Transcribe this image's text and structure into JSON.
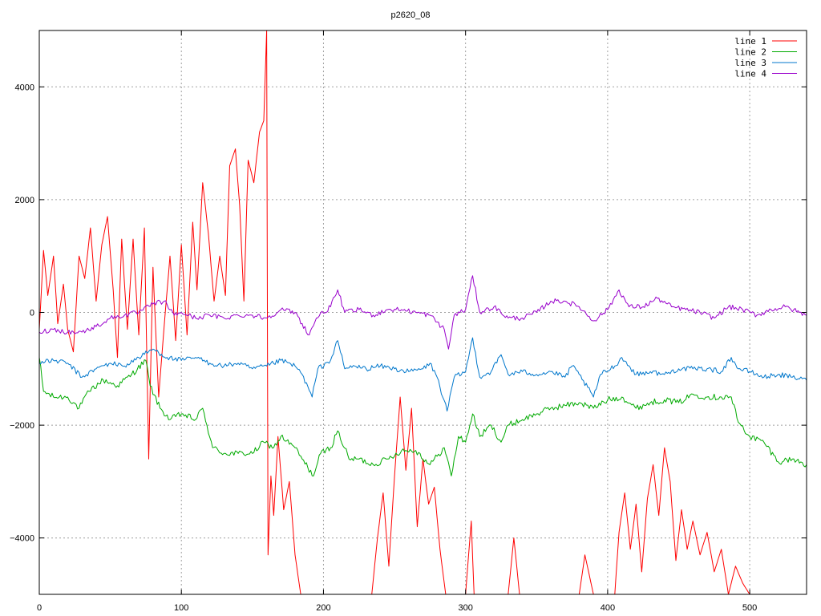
{
  "chart_data": {
    "type": "line",
    "title": "p2620_08",
    "xlabel": "",
    "ylabel": "",
    "xlim": [
      0,
      540
    ],
    "ylim": [
      -5000,
      5000
    ],
    "x_ticks": [
      0,
      100,
      200,
      300,
      400,
      500
    ],
    "y_ticks": [
      -4000,
      -2000,
      0,
      2000,
      4000
    ],
    "grid": true,
    "legend_position": "top-right",
    "series": [
      {
        "name": "line 1",
        "color": "#ff0000",
        "points": [
          [
            0,
            -300
          ],
          [
            3,
            1100
          ],
          [
            6,
            300
          ],
          [
            10,
            1000
          ],
          [
            13,
            -200
          ],
          [
            17,
            500
          ],
          [
            20,
            -300
          ],
          [
            24,
            -700
          ],
          [
            28,
            1000
          ],
          [
            32,
            600
          ],
          [
            36,
            1500
          ],
          [
            40,
            200
          ],
          [
            44,
            1200
          ],
          [
            48,
            1700
          ],
          [
            52,
            400
          ],
          [
            55,
            -800
          ],
          [
            58,
            1300
          ],
          [
            62,
            -300
          ],
          [
            66,
            1300
          ],
          [
            70,
            -400
          ],
          [
            74,
            1500
          ],
          [
            77,
            -2600
          ],
          [
            80,
            800
          ],
          [
            84,
            -1500
          ],
          [
            88,
            -200
          ],
          [
            92,
            1000
          ],
          [
            96,
            -500
          ],
          [
            100,
            1200
          ],
          [
            104,
            -400
          ],
          [
            108,
            1600
          ],
          [
            111,
            400
          ],
          [
            115,
            2300
          ],
          [
            119,
            1400
          ],
          [
            123,
            200
          ],
          [
            127,
            1000
          ],
          [
            131,
            300
          ],
          [
            134,
            2600
          ],
          [
            138,
            2900
          ],
          [
            141,
            1900
          ],
          [
            144,
            200
          ],
          [
            147,
            2700
          ],
          [
            151,
            2300
          ],
          [
            155,
            3200
          ],
          [
            158,
            3400
          ],
          [
            160,
            5000
          ],
          [
            161,
            -4300
          ],
          [
            163,
            -2900
          ],
          [
            165,
            -3600
          ],
          [
            168,
            -2200
          ],
          [
            172,
            -3500
          ],
          [
            176,
            -3000
          ],
          [
            180,
            -4300
          ],
          [
            184,
            -5000
          ],
          [
            234,
            -5000
          ],
          [
            238,
            -4000
          ],
          [
            242,
            -3200
          ],
          [
            246,
            -4500
          ],
          [
            250,
            -2900
          ],
          [
            254,
            -1500
          ],
          [
            258,
            -2800
          ],
          [
            262,
            -1700
          ],
          [
            266,
            -3800
          ],
          [
            270,
            -2600
          ],
          [
            274,
            -3400
          ],
          [
            278,
            -3100
          ],
          [
            282,
            -4200
          ],
          [
            286,
            -5000
          ],
          [
            300,
            -5000
          ],
          [
            304,
            -3700
          ],
          [
            306,
            -5000
          ],
          [
            330,
            -5000
          ],
          [
            334,
            -4000
          ],
          [
            338,
            -5000
          ],
          [
            380,
            -5000
          ],
          [
            384,
            -4300
          ],
          [
            390,
            -5000
          ],
          [
            405,
            -5000
          ],
          [
            408,
            -3900
          ],
          [
            412,
            -3200
          ],
          [
            416,
            -4200
          ],
          [
            420,
            -3400
          ],
          [
            424,
            -4600
          ],
          [
            428,
            -3300
          ],
          [
            432,
            -2700
          ],
          [
            436,
            -3600
          ],
          [
            440,
            -2400
          ],
          [
            444,
            -3000
          ],
          [
            448,
            -4400
          ],
          [
            452,
            -3500
          ],
          [
            456,
            -4200
          ],
          [
            460,
            -3700
          ],
          [
            465,
            -4300
          ],
          [
            470,
            -3900
          ],
          [
            475,
            -4600
          ],
          [
            480,
            -4200
          ],
          [
            485,
            -5000
          ],
          [
            490,
            -4500
          ],
          [
            495,
            -4800
          ],
          [
            500,
            -5000
          ],
          [
            540,
            -5000
          ]
        ],
        "jitter": 0
      },
      {
        "name": "line 2",
        "color": "#00aa00",
        "points": [
          [
            0,
            -800
          ],
          [
            3,
            -1400
          ],
          [
            10,
            -1500
          ],
          [
            20,
            -1500
          ],
          [
            28,
            -1700
          ],
          [
            35,
            -1400
          ],
          [
            45,
            -1200
          ],
          [
            55,
            -1300
          ],
          [
            65,
            -1100
          ],
          [
            75,
            -850
          ],
          [
            78,
            -1300
          ],
          [
            85,
            -1700
          ],
          [
            92,
            -1900
          ],
          [
            100,
            -1800
          ],
          [
            110,
            -1900
          ],
          [
            115,
            -1700
          ],
          [
            118,
            -2000
          ],
          [
            122,
            -2400
          ],
          [
            130,
            -2500
          ],
          [
            140,
            -2500
          ],
          [
            150,
            -2500
          ],
          [
            158,
            -2300
          ],
          [
            165,
            -2400
          ],
          [
            170,
            -2200
          ],
          [
            180,
            -2400
          ],
          [
            185,
            -2600
          ],
          [
            193,
            -2900
          ],
          [
            198,
            -2500
          ],
          [
            205,
            -2400
          ],
          [
            210,
            -2100
          ],
          [
            218,
            -2600
          ],
          [
            225,
            -2600
          ],
          [
            235,
            -2700
          ],
          [
            245,
            -2600
          ],
          [
            255,
            -2450
          ],
          [
            265,
            -2450
          ],
          [
            275,
            -2700
          ],
          [
            280,
            -2550
          ],
          [
            285,
            -2400
          ],
          [
            290,
            -2900
          ],
          [
            295,
            -2200
          ],
          [
            300,
            -2300
          ],
          [
            305,
            -1800
          ],
          [
            310,
            -2200
          ],
          [
            318,
            -2000
          ],
          [
            325,
            -2300
          ],
          [
            330,
            -2000
          ],
          [
            340,
            -1900
          ],
          [
            350,
            -1800
          ],
          [
            360,
            -1700
          ],
          [
            370,
            -1650
          ],
          [
            380,
            -1600
          ],
          [
            390,
            -1700
          ],
          [
            400,
            -1550
          ],
          [
            410,
            -1500
          ],
          [
            420,
            -1700
          ],
          [
            430,
            -1600
          ],
          [
            440,
            -1550
          ],
          [
            450,
            -1600
          ],
          [
            460,
            -1450
          ],
          [
            470,
            -1500
          ],
          [
            480,
            -1500
          ],
          [
            487,
            -1500
          ],
          [
            492,
            -1950
          ],
          [
            500,
            -2200
          ],
          [
            510,
            -2300
          ],
          [
            520,
            -2650
          ],
          [
            530,
            -2600
          ],
          [
            540,
            -2700
          ]
        ],
        "jitter": 55
      },
      {
        "name": "line 3",
        "color": "#0077cc",
        "points": [
          [
            0,
            -900
          ],
          [
            10,
            -850
          ],
          [
            20,
            -900
          ],
          [
            30,
            -1150
          ],
          [
            40,
            -1000
          ],
          [
            50,
            -900
          ],
          [
            60,
            -950
          ],
          [
            70,
            -800
          ],
          [
            80,
            -650
          ],
          [
            90,
            -800
          ],
          [
            100,
            -850
          ],
          [
            110,
            -800
          ],
          [
            120,
            -900
          ],
          [
            130,
            -950
          ],
          [
            140,
            -900
          ],
          [
            150,
            -1000
          ],
          [
            160,
            -950
          ],
          [
            170,
            -850
          ],
          [
            180,
            -950
          ],
          [
            185,
            -1100
          ],
          [
            192,
            -1500
          ],
          [
            196,
            -1000
          ],
          [
            205,
            -850
          ],
          [
            210,
            -500
          ],
          [
            215,
            -1000
          ],
          [
            222,
            -950
          ],
          [
            230,
            -1000
          ],
          [
            240,
            -950
          ],
          [
            250,
            -1000
          ],
          [
            260,
            -1050
          ],
          [
            270,
            -1000
          ],
          [
            275,
            -900
          ],
          [
            280,
            -1150
          ],
          [
            287,
            -1750
          ],
          [
            292,
            -1150
          ],
          [
            300,
            -1050
          ],
          [
            305,
            -450
          ],
          [
            310,
            -1150
          ],
          [
            318,
            -1050
          ],
          [
            325,
            -750
          ],
          [
            330,
            -1100
          ],
          [
            340,
            -1050
          ],
          [
            350,
            -1100
          ],
          [
            360,
            -1050
          ],
          [
            370,
            -1150
          ],
          [
            375,
            -950
          ],
          [
            380,
            -1100
          ],
          [
            390,
            -1500
          ],
          [
            395,
            -1100
          ],
          [
            405,
            -950
          ],
          [
            410,
            -800
          ],
          [
            420,
            -1100
          ],
          [
            430,
            -1050
          ],
          [
            440,
            -1100
          ],
          [
            450,
            -1000
          ],
          [
            460,
            -1000
          ],
          [
            470,
            -1000
          ],
          [
            480,
            -1050
          ],
          [
            487,
            -800
          ],
          [
            492,
            -1000
          ],
          [
            500,
            -1050
          ],
          [
            510,
            -1150
          ],
          [
            520,
            -1100
          ],
          [
            530,
            -1150
          ],
          [
            540,
            -1200
          ]
        ],
        "jitter": 45
      },
      {
        "name": "line 4",
        "color": "#9900cc",
        "points": [
          [
            0,
            -350
          ],
          [
            10,
            -300
          ],
          [
            20,
            -350
          ],
          [
            30,
            -350
          ],
          [
            40,
            -250
          ],
          [
            50,
            -100
          ],
          [
            60,
            -50
          ],
          [
            70,
            0
          ],
          [
            80,
            150
          ],
          [
            88,
            200
          ],
          [
            95,
            -50
          ],
          [
            100,
            0
          ],
          [
            110,
            -100
          ],
          [
            120,
            -50
          ],
          [
            130,
            -100
          ],
          [
            140,
            -50
          ],
          [
            150,
            -50
          ],
          [
            160,
            -100
          ],
          [
            170,
            50
          ],
          [
            180,
            0
          ],
          [
            190,
            -400
          ],
          [
            195,
            -100
          ],
          [
            205,
            100
          ],
          [
            210,
            400
          ],
          [
            215,
            0
          ],
          [
            225,
            50
          ],
          [
            235,
            -50
          ],
          [
            245,
            50
          ],
          [
            255,
            50
          ],
          [
            265,
            0
          ],
          [
            275,
            -50
          ],
          [
            285,
            -300
          ],
          [
            288,
            -650
          ],
          [
            292,
            -50
          ],
          [
            300,
            50
          ],
          [
            305,
            650
          ],
          [
            310,
            0
          ],
          [
            320,
            100
          ],
          [
            330,
            -100
          ],
          [
            340,
            -100
          ],
          [
            350,
            0
          ],
          [
            360,
            200
          ],
          [
            370,
            200
          ],
          [
            380,
            100
          ],
          [
            390,
            -150
          ],
          [
            400,
            50
          ],
          [
            408,
            400
          ],
          [
            415,
            100
          ],
          [
            425,
            100
          ],
          [
            435,
            250
          ],
          [
            445,
            100
          ],
          [
            455,
            50
          ],
          [
            465,
            0
          ],
          [
            475,
            -100
          ],
          [
            485,
            100
          ],
          [
            495,
            50
          ],
          [
            505,
            -50
          ],
          [
            515,
            50
          ],
          [
            525,
            100
          ],
          [
            535,
            0
          ],
          [
            540,
            -50
          ]
        ],
        "jitter": 45
      }
    ]
  }
}
